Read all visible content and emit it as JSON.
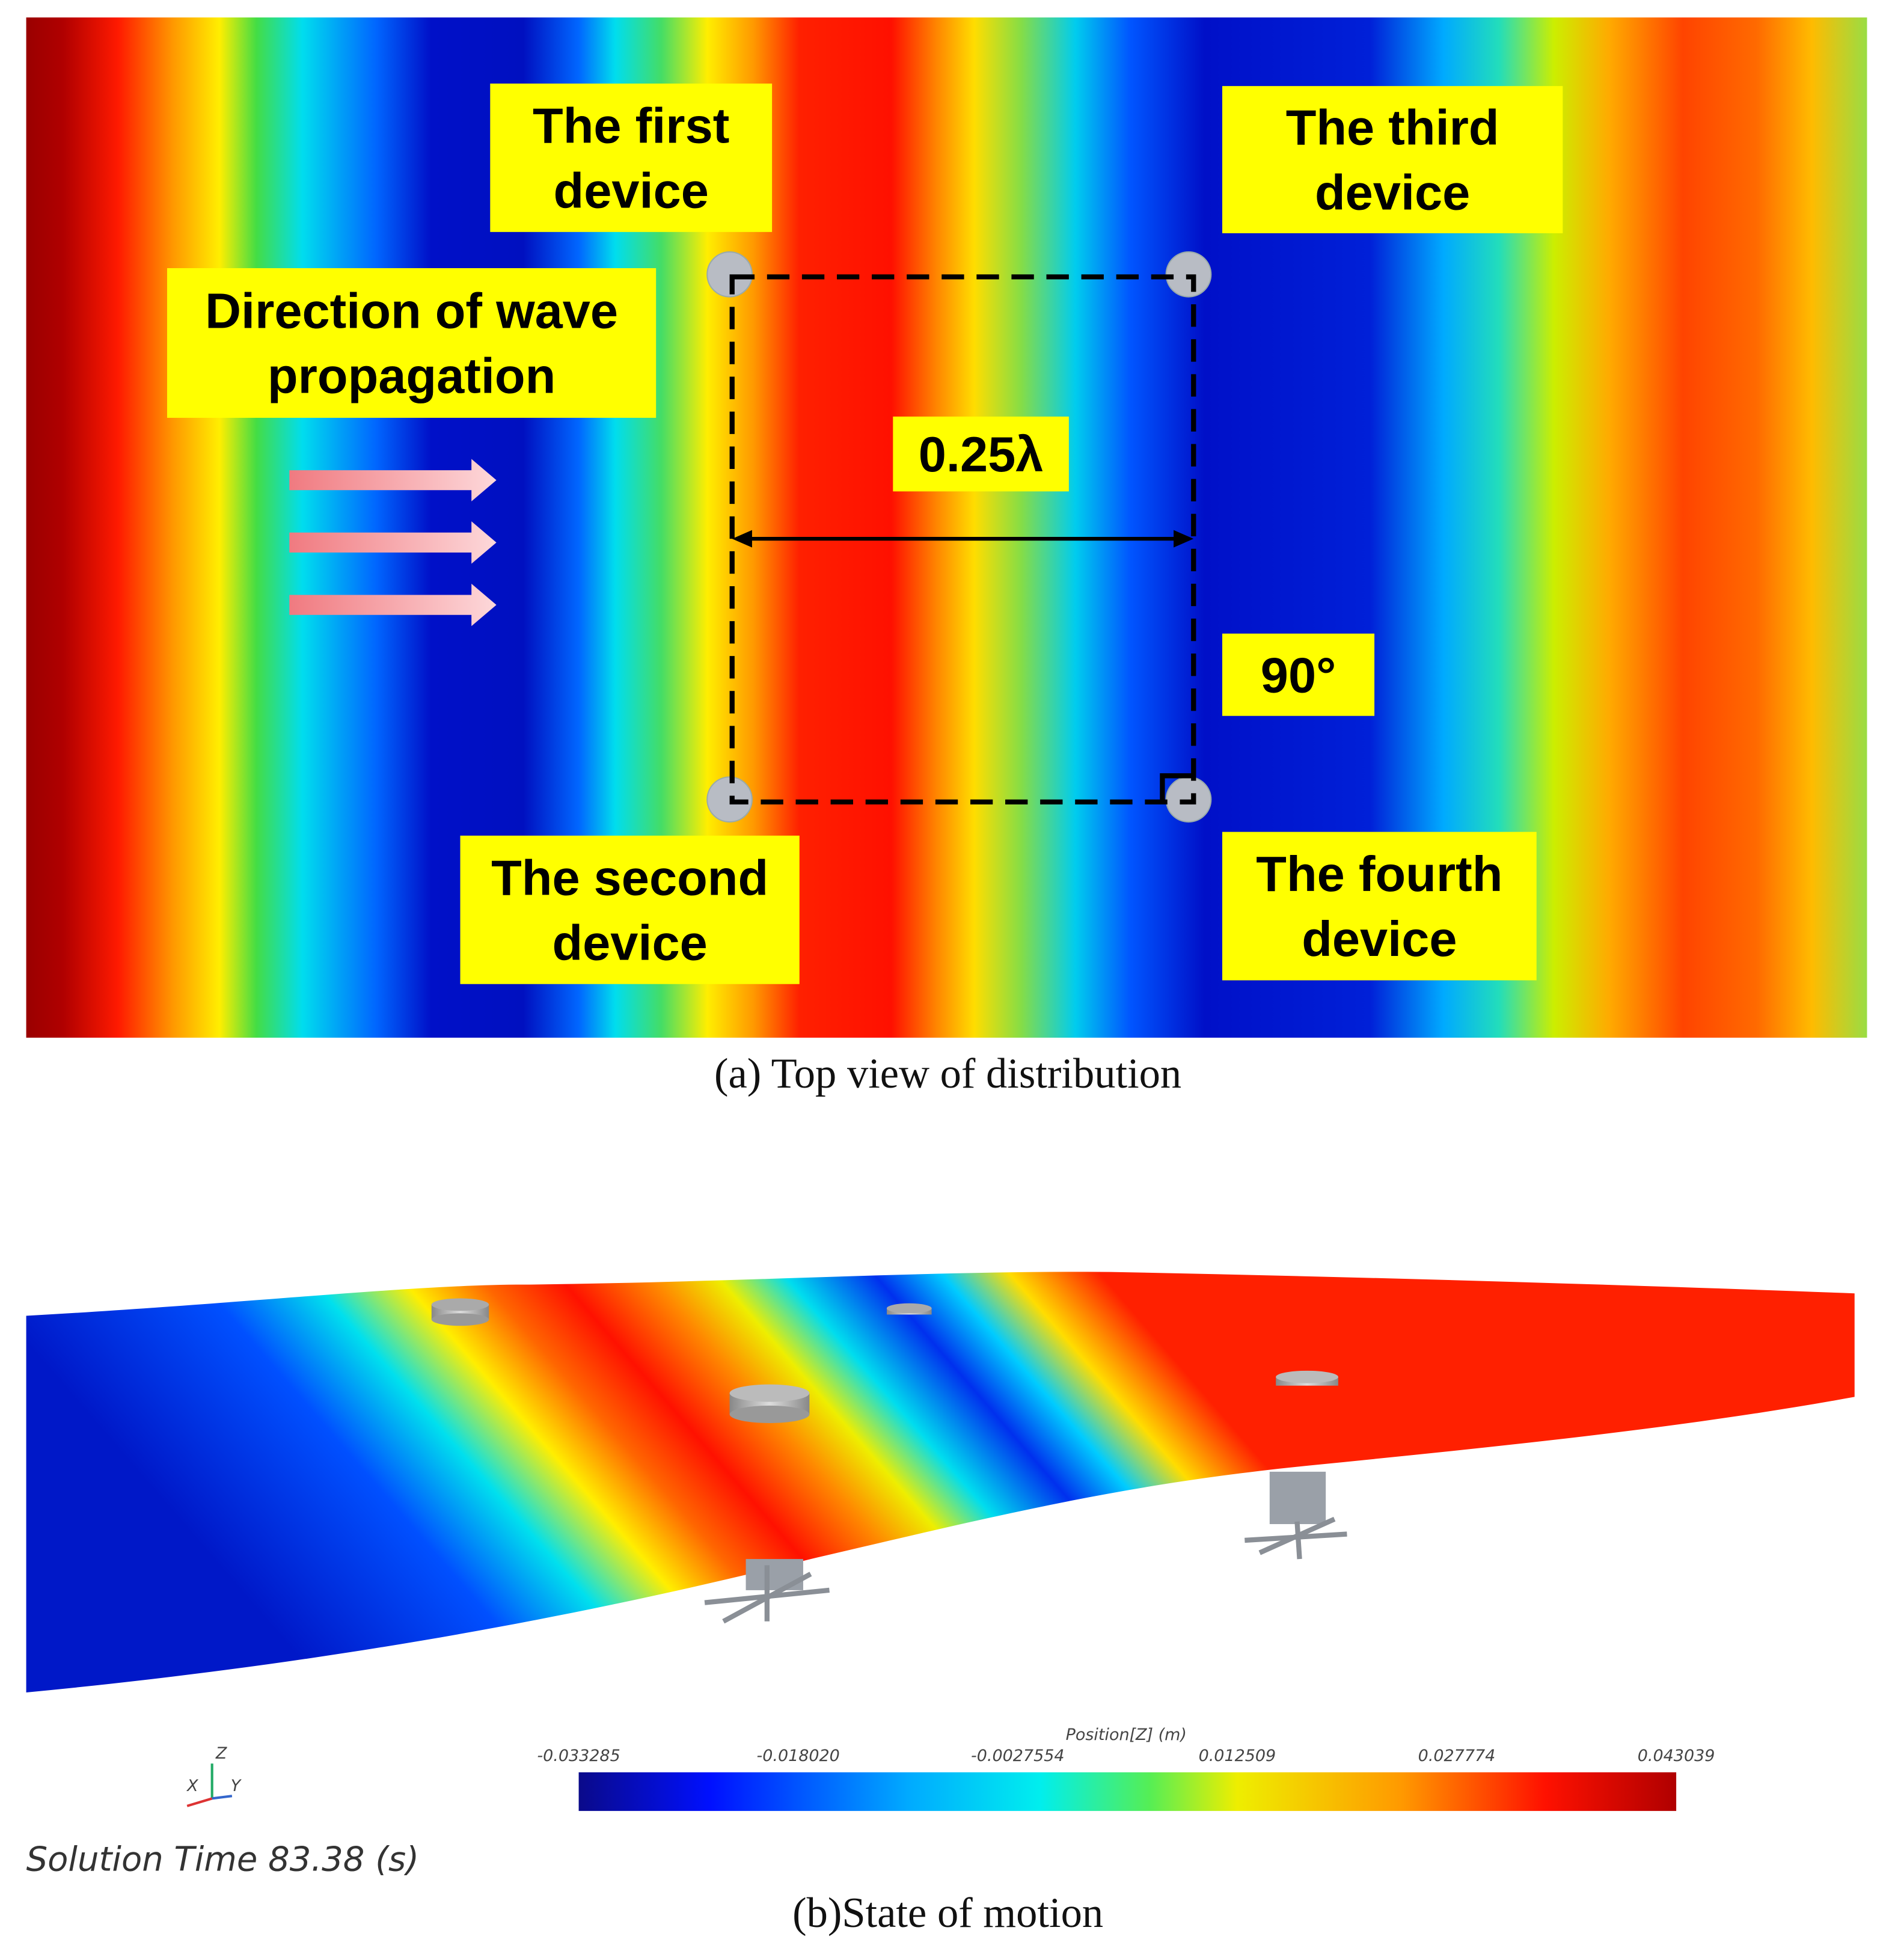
{
  "panel_a": {
    "labels": [
      {
        "lines": [
          "The first",
          "device"
        ]
      },
      {
        "lines": [
          "The third",
          "device"
        ]
      },
      {
        "lines": [
          "Direction of wave",
          "propagation"
        ]
      },
      {
        "lines": [
          "0.25λ"
        ]
      },
      {
        "lines": [
          "90°"
        ]
      },
      {
        "lines": [
          "The second",
          "device"
        ]
      },
      {
        "lines": [
          "The fourth",
          "device"
        ]
      }
    ],
    "caption": "(a) Top view of distribution"
  },
  "panel_b": {
    "colorbar": {
      "title": "Position[Z] (m)",
      "tick_labels": [
        "-0.033285",
        "-0.018020",
        "-0.0027554",
        "0.012509",
        "0.027774",
        "0.043039"
      ]
    },
    "axes": [
      "Z",
      "X",
      "Y"
    ],
    "solution_time": "Solution Time 83.38 (s)",
    "caption": "(b)State of motion"
  }
}
